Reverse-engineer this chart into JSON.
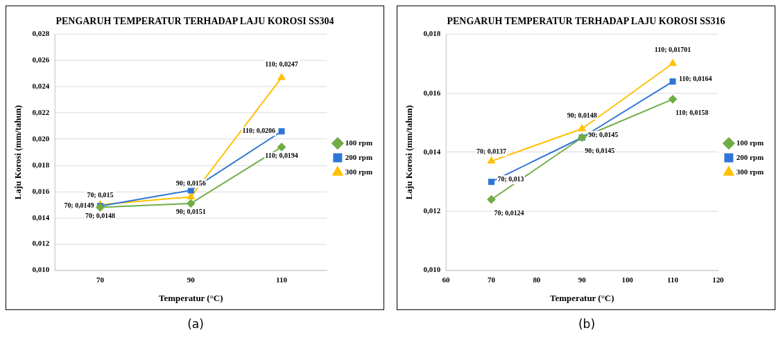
{
  "chart_data": [
    {
      "type": "line",
      "title": "PENGARUH TEMPERATUR TERHADAP LAJU KOROSI SS304",
      "xlabel": "Temperatur (°C)",
      "ylabel": "Laju Korosi (mm/tahun)",
      "categories": [
        "70",
        "90",
        "110"
      ],
      "series": [
        {
          "name": "100 rpm",
          "color": "#70ad47",
          "marker": "diamond",
          "values": [
            0.0148,
            0.0151,
            0.0194
          ],
          "value_labels": [
            "70; 0,0148",
            "90; 0,0151",
            "110; 0,0194"
          ]
        },
        {
          "name": "200 rpm",
          "color": "#2e75d6",
          "marker": "square",
          "values": [
            0.0149,
            0.0161,
            0.0206
          ],
          "value_labels": [
            "70; 0,0149",
            null,
            "110; 0,0206"
          ]
        },
        {
          "name": "300 rpm",
          "color": "#ffc000",
          "marker": "triangle",
          "values": [
            0.015,
            0.0156,
            0.0247
          ],
          "value_labels": [
            "70; 0,015",
            "90; 0,0156",
            "110; 0,0247"
          ]
        }
      ],
      "ylim": [
        0.01,
        0.028
      ],
      "yticks": [
        {
          "value": 0.01,
          "label": "0,010"
        },
        {
          "value": 0.012,
          "label": "0,012"
        },
        {
          "value": 0.014,
          "label": "0,014"
        },
        {
          "value": 0.016,
          "label": "0,016"
        },
        {
          "value": 0.018,
          "label": "0,018"
        },
        {
          "value": 0.02,
          "label": "0,020"
        },
        {
          "value": 0.022,
          "label": "0,022"
        },
        {
          "value": 0.024,
          "label": "0,024"
        },
        {
          "value": 0.026,
          "label": "0,026"
        },
        {
          "value": 0.028,
          "label": "0,028"
        }
      ],
      "grid": "y",
      "legend": "right",
      "annotations": [
        "(a)"
      ]
    },
    {
      "type": "line",
      "title": "PENGARUH TEMPERATUR TERHADAP LAJU KOROSI SS316",
      "xlabel": "Temperatur (°C)",
      "ylabel": "Laju Korosi (mm/tahun)",
      "x": [
        70,
        90,
        110
      ],
      "series": [
        {
          "name": "100 rpm",
          "color": "#70ad47",
          "marker": "diamond",
          "values": [
            0.0124,
            0.0145,
            0.0158
          ],
          "value_labels": [
            "70; 0,0124",
            "90; 0,0145",
            "110; 0,0158"
          ]
        },
        {
          "name": "200 rpm",
          "color": "#2e75d6",
          "marker": "square",
          "values": [
            0.013,
            0.0145,
            0.0164
          ],
          "value_labels": [
            "70; 0,013",
            "90; 0,0145",
            "110; 0,0164"
          ]
        },
        {
          "name": "300 rpm",
          "color": "#ffc000",
          "marker": "triangle",
          "values": [
            0.0137,
            0.0148,
            0.01701
          ],
          "value_labels": [
            "70; 0,0137",
            "90; 0,0148",
            "110; 0,01701"
          ]
        }
      ],
      "xlim": [
        60,
        120
      ],
      "xticks": [
        60,
        70,
        80,
        90,
        100,
        110,
        120
      ],
      "ylim": [
        0.01,
        0.018
      ],
      "yticks": [
        {
          "value": 0.01,
          "label": "0,010"
        },
        {
          "value": 0.012,
          "label": "0,012"
        },
        {
          "value": 0.014,
          "label": "0,014"
        },
        {
          "value": 0.016,
          "label": "0,016"
        },
        {
          "value": 0.018,
          "label": "0,018"
        }
      ],
      "grid": "y",
      "legend": "right",
      "annotations": [
        "(b)"
      ]
    }
  ]
}
